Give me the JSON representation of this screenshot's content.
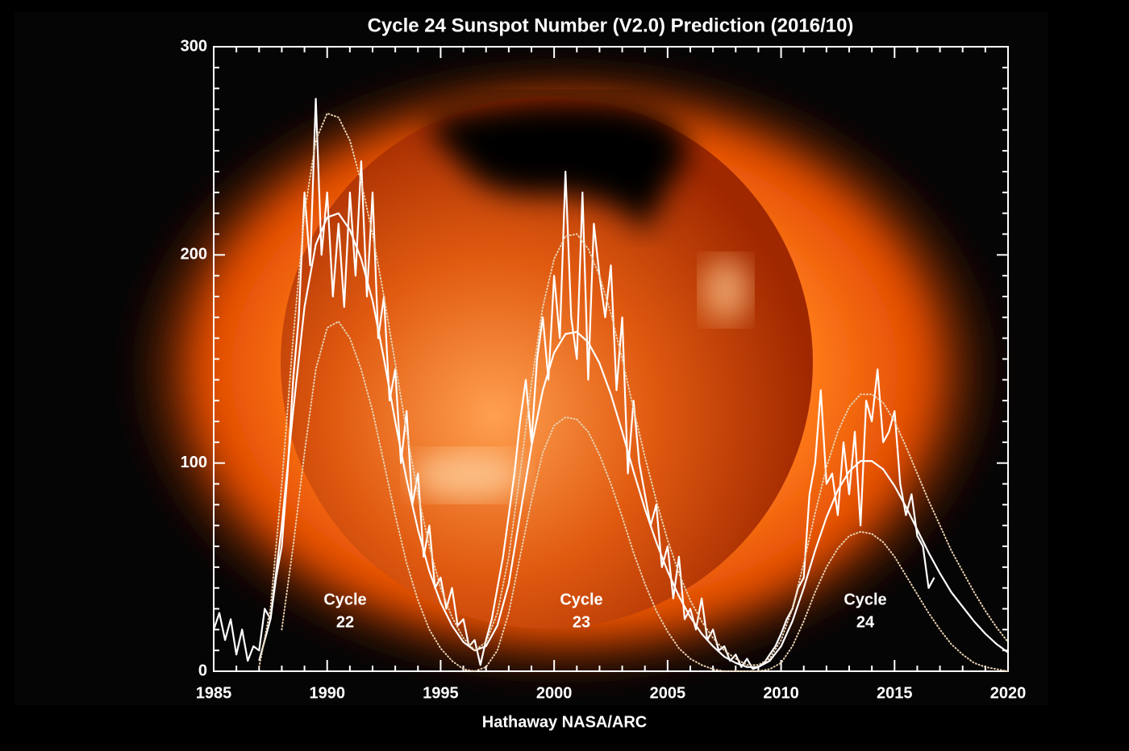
{
  "chart_data": {
    "type": "line",
    "title": "Cycle 24 Sunspot Number (V2.0) Prediction (2016/10)",
    "credit": "Hathaway  NASA/ARC",
    "annotations": [
      [
        "Cycle",
        "22"
      ],
      [
        "Cycle",
        "23"
      ],
      [
        "Cycle",
        "24"
      ]
    ],
    "xlim": [
      1985,
      2020
    ],
    "ylim": [
      0,
      300
    ],
    "xticks": [
      1985,
      1990,
      1995,
      2000,
      2005,
      2010,
      2015,
      2020
    ],
    "yticks": [
      0,
      100,
      200,
      300
    ],
    "xminorticks": [
      1986,
      1987,
      1988,
      1989,
      1991,
      1992,
      1993,
      1994,
      1996,
      1997,
      1998,
      1999,
      2001,
      2002,
      2003,
      2004,
      2006,
      2007,
      2008,
      2009,
      2011,
      2012,
      2013,
      2014,
      2016,
      2017,
      2018,
      2019
    ],
    "yminorticks": [
      10,
      20,
      30,
      40,
      50,
      60,
      70,
      80,
      90,
      110,
      120,
      130,
      140,
      150,
      160,
      170,
      180,
      190,
      210,
      220,
      230,
      240,
      250,
      260,
      270,
      280,
      290
    ],
    "series": [
      {
        "color": "#ffffff",
        "style": "solid",
        "x": [
          1985,
          1985.25,
          1985.5,
          1985.75,
          1986,
          1986.25,
          1986.5,
          1986.75,
          1987,
          1987.25,
          1987.5,
          1987.75,
          1988,
          1988.25,
          1988.5,
          1988.75,
          1989,
          1989.25,
          1989.5,
          1989.75,
          1990,
          1990.25,
          1990.5,
          1990.75,
          1991,
          1991.25,
          1991.5,
          1991.75,
          1992,
          1992.25,
          1992.5,
          1992.75,
          1993,
          1993.25,
          1993.5,
          1993.75,
          1994,
          1994.25,
          1994.5,
          1994.75,
          1995,
          1995.25,
          1995.5,
          1995.75,
          1996,
          1996.25,
          1996.5,
          1996.75,
          1997,
          1997.25,
          1997.5,
          1997.75,
          1998,
          1998.25,
          1998.5,
          1998.75,
          1999,
          1999.25,
          1999.5,
          1999.75,
          2000,
          2000.25,
          2000.5,
          2000.75,
          2001,
          2001.25,
          2001.5,
          2001.75,
          2002,
          2002.25,
          2002.5,
          2002.75,
          2003,
          2003.25,
          2003.5,
          2003.75,
          2004,
          2004.25,
          2004.5,
          2004.75,
          2005,
          2005.25,
          2005.5,
          2005.75,
          2006,
          2006.25,
          2006.5,
          2006.75,
          2007,
          2007.25,
          2007.5,
          2007.75,
          2008,
          2008.25,
          2008.5,
          2008.75,
          2009,
          2009.25,
          2009.5,
          2009.75,
          2010,
          2010.25,
          2010.5,
          2010.75,
          2011,
          2011.25,
          2011.5,
          2011.75,
          2012,
          2012.25,
          2012.5,
          2012.75,
          2013,
          2013.25,
          2013.5,
          2013.75,
          2014,
          2014.25,
          2014.5,
          2014.75,
          2015,
          2015.25,
          2015.5,
          2015.75,
          2016,
          2016.25,
          2016.5,
          2016.75
        ],
        "values": [
          20,
          28,
          15,
          25,
          8,
          20,
          5,
          12,
          10,
          30,
          25,
          45,
          60,
          95,
          140,
          170,
          230,
          195,
          275,
          200,
          230,
          180,
          215,
          175,
          230,
          190,
          245,
          180,
          230,
          160,
          180,
          130,
          145,
          100,
          125,
          80,
          95,
          55,
          70,
          40,
          45,
          30,
          40,
          22,
          25,
          12,
          15,
          3,
          15,
          25,
          40,
          55,
          75,
          95,
          120,
          140,
          110,
          150,
          170,
          140,
          190,
          160,
          240,
          170,
          150,
          230,
          140,
          215,
          190,
          170,
          195,
          135,
          170,
          95,
          130,
          100,
          85,
          70,
          80,
          50,
          60,
          35,
          55,
          25,
          30,
          20,
          35,
          15,
          20,
          10,
          12,
          5,
          8,
          2,
          6,
          1,
          2,
          4,
          8,
          12,
          18,
          25,
          30,
          40,
          45,
          85,
          100,
          135,
          90,
          95,
          75,
          110,
          85,
          115,
          70,
          130,
          120,
          145,
          110,
          115,
          125,
          90,
          75,
          85,
          65,
          60,
          40,
          45
        ]
      },
      {
        "color": "#ffffff",
        "style": "solid",
        "x": [
          1987,
          1987.5,
          1988,
          1988.5,
          1989,
          1989.5,
          1990,
          1990.5,
          1991,
          1991.5,
          1992,
          1992.5,
          1993,
          1993.5,
          1994,
          1994.5,
          1995,
          1995.5,
          1996,
          1996.5,
          1997,
          1997.5,
          1998,
          1998.5,
          1999,
          1999.5,
          2000,
          2000.5,
          2001,
          2001.5,
          2002,
          2002.5,
          2003,
          2003.5,
          2004,
          2004.5,
          2005,
          2005.5,
          2006,
          2006.5,
          2007,
          2007.5,
          2008,
          2008.5,
          2009,
          2009.5,
          2010,
          2010.5,
          2011,
          2011.5,
          2012,
          2012.5,
          2013,
          2013.5,
          2014,
          2014.5,
          2015,
          2015.5,
          2016,
          2016.5,
          2017,
          2017.5,
          2018,
          2018.5,
          2019,
          2019.5,
          2020
        ],
        "values": [
          5,
          25,
          70,
          125,
          175,
          205,
          218,
          220,
          212,
          198,
          178,
          150,
          120,
          92,
          68,
          48,
          33,
          22,
          14,
          10,
          12,
          22,
          42,
          75,
          108,
          135,
          153,
          162,
          163,
          158,
          148,
          133,
          115,
          96,
          78,
          62,
          48,
          36,
          26,
          18,
          12,
          7,
          4,
          2,
          2,
          5,
          12,
          24,
          40,
          58,
          74,
          87,
          96,
          101,
          101,
          97,
          89,
          79,
          68,
          57,
          47,
          38,
          31,
          24,
          18,
          13,
          9
        ]
      },
      {
        "color": "#e8d0b0",
        "style": "dotted",
        "x": [
          1987,
          1987.5,
          1988,
          1988.5,
          1989,
          1989.5,
          1990,
          1990.5,
          1991,
          1991.5,
          1992,
          1992.5,
          1993,
          1993.5,
          1994,
          1994.5,
          1995,
          1995.5,
          1996,
          1996.5,
          1997,
          1997.5,
          1998,
          1998.5,
          1999,
          1999.5,
          2000,
          2000.5,
          2001,
          2001.5,
          2002,
          2002.5,
          2003,
          2003.5,
          2004,
          2004.5,
          2005,
          2005.5,
          2006,
          2006.5,
          2007,
          2007.5,
          2008,
          2008.5,
          2009,
          2009.5,
          2010,
          2010.5,
          2011,
          2011.5,
          2012,
          2012.5,
          2013,
          2013.5,
          2014,
          2014.5,
          2015,
          2015.5,
          2016,
          2016.5,
          2017,
          2017.5,
          2018,
          2018.5,
          2019,
          2019.5,
          2020
        ],
        "values": [
          2,
          30,
          90,
          160,
          220,
          255,
          268,
          266,
          255,
          235,
          210,
          180,
          148,
          115,
          85,
          60,
          40,
          26,
          16,
          10,
          14,
          28,
          55,
          95,
          138,
          175,
          198,
          209,
          210,
          203,
          190,
          172,
          150,
          126,
          103,
          82,
          63,
          47,
          34,
          24,
          16,
          10,
          6,
          3,
          3,
          6,
          15,
          30,
          52,
          76,
          98,
          115,
          127,
          133,
          133,
          129,
          120,
          108,
          95,
          82,
          70,
          58,
          48,
          38,
          29,
          21,
          14
        ]
      },
      {
        "color": "#e8d0b0",
        "style": "dotted",
        "x": [
          1988,
          1988.5,
          1989,
          1989.5,
          1990,
          1990.5,
          1991,
          1991.5,
          1992,
          1992.5,
          1993,
          1993.5,
          1994,
          1994.5,
          1995,
          1995.5,
          1996,
          1996.5,
          1997,
          1997.5,
          1998,
          1998.5,
          1999,
          1999.5,
          2000,
          2000.5,
          2001,
          2001.5,
          2002,
          2002.5,
          2003,
          2003.5,
          2004,
          2004.5,
          2005,
          2005.5,
          2006,
          2006.5,
          2007,
          2007.5,
          2008,
          2008.5,
          2009,
          2009.5,
          2010,
          2010.5,
          2011,
          2011.5,
          2012,
          2012.5,
          2013,
          2013.5,
          2014,
          2014.5,
          2015,
          2015.5,
          2016,
          2016.5,
          2017,
          2017.5,
          2018,
          2018.5,
          2019,
          2019.5,
          2020
        ],
        "values": [
          20,
          60,
          105,
          145,
          165,
          168,
          160,
          145,
          125,
          100,
          75,
          52,
          34,
          20,
          11,
          5,
          1,
          0,
          2,
          10,
          28,
          55,
          82,
          105,
          118,
          122,
          121,
          115,
          104,
          90,
          74,
          57,
          42,
          29,
          19,
          11,
          6,
          3,
          1,
          0,
          0,
          0,
          0,
          1,
          4,
          12,
          24,
          38,
          50,
          59,
          65,
          67,
          66,
          62,
          55,
          46,
          37,
          28,
          20,
          13,
          8,
          4,
          2,
          1,
          0
        ]
      }
    ]
  }
}
